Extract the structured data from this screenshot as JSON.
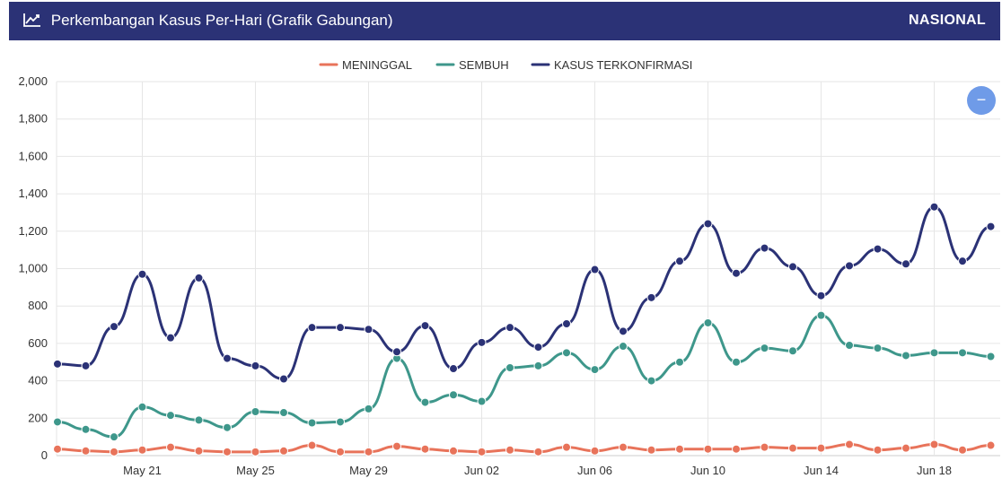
{
  "header": {
    "title": "Perkembangan Kasus Per-Hari (Grafik Gabungan)",
    "region": "NASIONAL",
    "title_icon": "line-chart-icon"
  },
  "controls": {
    "zoom_label": "−",
    "zoom_icon": "minus-icon"
  },
  "chart_data": {
    "type": "line",
    "title": "",
    "xlabel": "",
    "ylabel": "",
    "ylim": [
      0,
      2000
    ],
    "yticks": [
      0,
      200,
      400,
      600,
      800,
      1000,
      1200,
      1400,
      1600,
      1800,
      2000
    ],
    "ytick_labels": [
      "0",
      "200",
      "400",
      "600",
      "800",
      "1,000",
      "1,200",
      "1,400",
      "1,600",
      "1,800",
      "2,000"
    ],
    "x": [
      "May 18",
      "May 19",
      "May 20",
      "May 21",
      "May 22",
      "May 23",
      "May 24",
      "May 25",
      "May 26",
      "May 27",
      "May 28",
      "May 29",
      "May 30",
      "May 31",
      "Jun 01",
      "Jun 02",
      "Jun 03",
      "Jun 04",
      "Jun 05",
      "Jun 06",
      "Jun 07",
      "Jun 08",
      "Jun 09",
      "Jun 10",
      "Jun 11",
      "Jun 12",
      "Jun 13",
      "Jun 14",
      "Jun 15",
      "Jun 16",
      "Jun 17",
      "Jun 18",
      "Jun 19",
      "Jun 20",
      "Jun 21"
    ],
    "xtick_labels": [
      "May 21",
      "May 25",
      "May 29",
      "Jun 02",
      "Jun 06",
      "Jun 10",
      "Jun 14",
      "Jun 18"
    ],
    "legend_position": "top-center",
    "grid": true,
    "series": [
      {
        "name": "MENINGGAL",
        "color": "#e8735a",
        "values": [
          35,
          25,
          20,
          30,
          45,
          25,
          20,
          20,
          25,
          55,
          20,
          20,
          50,
          35,
          25,
          20,
          30,
          20,
          45,
          25,
          45,
          30,
          35,
          35,
          35,
          45,
          40,
          40,
          60,
          30,
          40,
          60,
          30,
          55,
          null
        ]
      },
      {
        "name": "SEMBUH",
        "color": "#3e978b",
        "values": [
          180,
          140,
          100,
          260,
          215,
          190,
          150,
          235,
          230,
          175,
          180,
          250,
          520,
          285,
          325,
          290,
          470,
          480,
          550,
          460,
          585,
          400,
          500,
          710,
          500,
          575,
          560,
          750,
          590,
          575,
          535,
          550,
          550,
          530,
          null
        ]
      },
      {
        "name": "KASUS TERKONFIRMASI",
        "color": "#2b3276",
        "values": [
          490,
          480,
          690,
          970,
          630,
          950,
          520,
          480,
          410,
          685,
          685,
          675,
          555,
          695,
          465,
          605,
          685,
          580,
          705,
          995,
          665,
          845,
          1040,
          1240,
          975,
          1110,
          1010,
          855,
          1015,
          1105,
          1025,
          1330,
          1040,
          1225,
          null
        ]
      }
    ]
  }
}
